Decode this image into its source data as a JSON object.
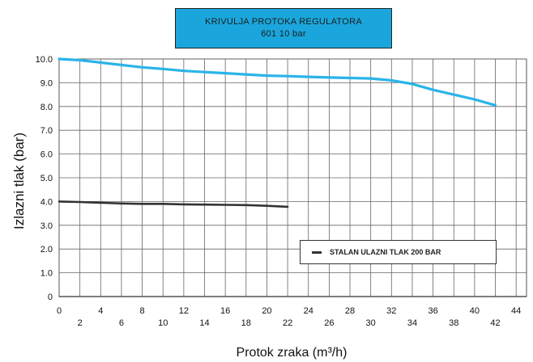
{
  "chart_data": {
    "type": "line",
    "title": "KRIVULJA PROTOKA REGULATORA",
    "subtitle": "601 10 bar",
    "xlabel": "Protok zraka (m³/h)",
    "ylabel": "Izlazni tlak (bar)",
    "xlim": [
      0,
      45
    ],
    "ylim": [
      0,
      10
    ],
    "grid": true,
    "x_ticks": [
      "0",
      "2",
      "4",
      "6",
      "8",
      "10",
      "12",
      "14",
      "16",
      "18",
      "20",
      "22",
      "24",
      "26",
      "28",
      "30",
      "32",
      "34",
      "36",
      "38",
      "40",
      "42",
      "44"
    ],
    "y_ticks": [
      "0",
      "1.0",
      "2.0",
      "3.0",
      "4.0",
      "5.0",
      "6.0",
      "7.0",
      "8.0",
      "9.0",
      "10.0"
    ],
    "legend": {
      "placement": "bottom-right",
      "entries": [
        "STALAN ULAZNI TLAK 200 BAR"
      ]
    },
    "series": [
      {
        "color": "#2ab4e8",
        "x": [
          0,
          2,
          4,
          6,
          8,
          10,
          12,
          14,
          16,
          18,
          20,
          22,
          24,
          26,
          28,
          30,
          32,
          34,
          36,
          38,
          40,
          42
        ],
        "y": [
          10.0,
          9.95,
          9.85,
          9.75,
          9.65,
          9.58,
          9.5,
          9.45,
          9.4,
          9.35,
          9.3,
          9.28,
          9.25,
          9.22,
          9.2,
          9.18,
          9.1,
          8.95,
          8.7,
          8.5,
          8.3,
          8.05
        ]
      },
      {
        "name": "STALAN ULAZNI TLAK 200 BAR",
        "color": "#333333",
        "x": [
          0,
          2,
          4,
          6,
          8,
          10,
          12,
          14,
          16,
          18,
          20,
          22
        ],
        "y": [
          4.0,
          3.98,
          3.95,
          3.92,
          3.9,
          3.9,
          3.88,
          3.87,
          3.86,
          3.85,
          3.82,
          3.78
        ]
      }
    ]
  }
}
